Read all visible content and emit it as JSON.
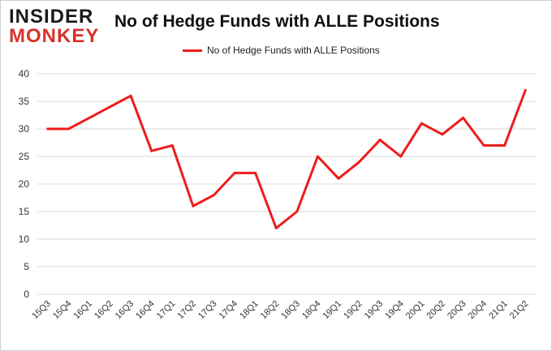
{
  "logo": {
    "line1": "INSIDER",
    "line2": "MONKEY"
  },
  "chart_data": {
    "type": "line",
    "title": "No of Hedge Funds with ALLE Positions",
    "xlabel": "",
    "ylabel": "",
    "categories": [
      "15Q3",
      "15Q4",
      "16Q1",
      "16Q2",
      "16Q3",
      "16Q4",
      "17Q1",
      "17Q2",
      "17Q3",
      "17Q4",
      "18Q1",
      "18Q2",
      "18Q3",
      "18Q4",
      "19Q1",
      "19Q2",
      "19Q3",
      "19Q4",
      "20Q1",
      "20Q2",
      "20Q3",
      "20Q4",
      "21Q1",
      "21Q2"
    ],
    "series": [
      {
        "name": "No of Hedge Funds with ALLE Positions",
        "color": "#ee1c1c",
        "values": [
          30,
          30,
          32,
          34,
          36,
          26,
          27,
          16,
          18,
          22,
          22,
          12,
          15,
          25,
          21,
          24,
          28,
          25,
          31,
          29,
          32,
          27,
          27,
          37
        ]
      }
    ],
    "ylim": [
      0,
      40
    ],
    "yticks": [
      0,
      5,
      10,
      15,
      20,
      25,
      30,
      35,
      40
    ],
    "grid": true,
    "legend_position": "top-center"
  }
}
